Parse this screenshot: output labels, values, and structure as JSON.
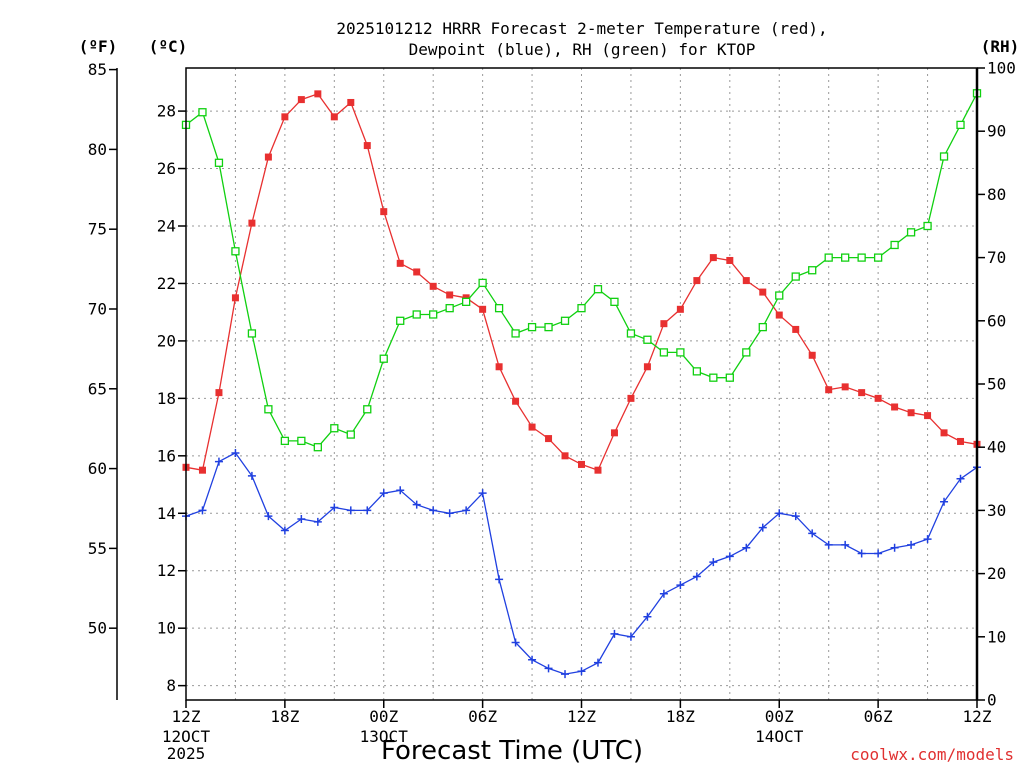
{
  "chart_data": {
    "type": "line",
    "title": [
      "2025101212 HRRR Forecast 2-meter Temperature (red),",
      "Dewpoint (blue), RH (green) for KTOP"
    ],
    "xlabel": "Forecast Time (UTC)",
    "credit": "coolwx.com/models",
    "unit_f": "(ºF)",
    "unit_c": "(ºC)",
    "unit_rh": "(RH)",
    "xlim": [
      0,
      48
    ],
    "x_ticks": [
      {
        "h": 0,
        "label": "12Z",
        "sub": [
          "12OCT",
          "2025"
        ]
      },
      {
        "h": 6,
        "label": "18Z",
        "sub": []
      },
      {
        "h": 12,
        "label": "00Z",
        "sub": [
          "13OCT"
        ]
      },
      {
        "h": 18,
        "label": "06Z",
        "sub": []
      },
      {
        "h": 24,
        "label": "12Z",
        "sub": []
      },
      {
        "h": 30,
        "label": "18Z",
        "sub": []
      },
      {
        "h": 36,
        "label": "00Z",
        "sub": [
          "14OCT"
        ]
      },
      {
        "h": 42,
        "label": "06Z",
        "sub": []
      },
      {
        "h": 48,
        "label": "12Z",
        "sub": []
      }
    ],
    "ylim_c": [
      7.5,
      29.5
    ],
    "ticks_c": [
      8,
      10,
      12,
      14,
      16,
      18,
      20,
      22,
      24,
      26,
      28
    ],
    "ticks_f": [
      50,
      55,
      60,
      65,
      70,
      75,
      80,
      85
    ],
    "ylim_rh": [
      0,
      100
    ],
    "ticks_rh": [
      0,
      10,
      20,
      30,
      40,
      50,
      60,
      70,
      80,
      90,
      100
    ],
    "colors": {
      "temperature": "#e83030",
      "dewpoint": "#2040e0",
      "rh": "#10d010"
    },
    "series": [
      {
        "key": "temperature",
        "unit": "C",
        "marker": "filled-square",
        "values": [
          15.6,
          15.5,
          18.2,
          21.5,
          24.1,
          26.4,
          27.8,
          28.4,
          28.6,
          27.8,
          28.3,
          26.8,
          24.5,
          22.7,
          22.4,
          21.9,
          21.6,
          21.5,
          21.1,
          19.1,
          17.9,
          17.0,
          16.6,
          16.0,
          15.7,
          15.5,
          16.8,
          18.0,
          19.1,
          20.6,
          21.1,
          22.1,
          22.9,
          22.8,
          22.1,
          21.7,
          20.9,
          20.4,
          19.5,
          18.3,
          18.4,
          18.2,
          18.0,
          17.7,
          17.5,
          17.4,
          16.8,
          16.5,
          16.4
        ]
      },
      {
        "key": "dewpoint",
        "unit": "C",
        "marker": "plus",
        "values": [
          13.9,
          14.1,
          15.8,
          16.1,
          15.3,
          13.9,
          13.4,
          13.8,
          13.7,
          14.2,
          14.1,
          14.1,
          14.7,
          14.8,
          14.3,
          14.1,
          14.0,
          14.1,
          14.7,
          11.7,
          9.5,
          8.9,
          8.6,
          8.4,
          8.5,
          8.8,
          9.8,
          9.7,
          10.4,
          11.2,
          11.5,
          11.8,
          12.3,
          12.5,
          12.8,
          13.5,
          14.0,
          13.9,
          13.3,
          12.9,
          12.9,
          12.6,
          12.6,
          12.8,
          12.9,
          13.1,
          14.4,
          15.2,
          15.6
        ]
      },
      {
        "key": "rh",
        "unit": "%",
        "marker": "open-square",
        "values": [
          91,
          93,
          85,
          71,
          58,
          46,
          41,
          41,
          40,
          43,
          42,
          46,
          54,
          60,
          61,
          61,
          62,
          63,
          66,
          62,
          58,
          59,
          59,
          60,
          62,
          65,
          63,
          58,
          57,
          55,
          55,
          52,
          51,
          51,
          55,
          59,
          64,
          67,
          68,
          70,
          70,
          70,
          70,
          72,
          74,
          75,
          86,
          91,
          96
        ]
      }
    ]
  }
}
